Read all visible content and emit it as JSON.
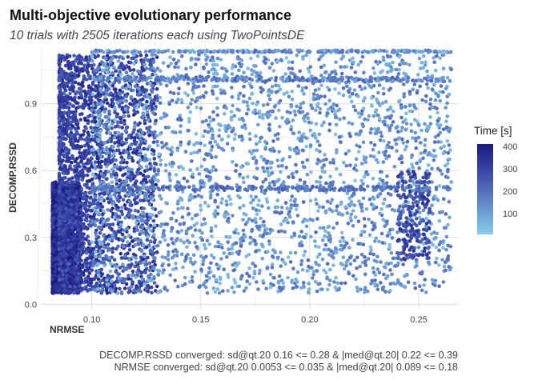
{
  "title": "Multi-objective evolutionary performance",
  "subtitle": "10 trials with 2505 iterations each using TwoPointsDE",
  "captions": [
    "DECOMP.RSSD converged: sd@qt.20 0.16 <= 0.28 & |med@qt.20| 0.22 <= 0.39",
    "NRMSE converged: sd@qt.20 0.0053 <= 0.035 & |med@qt.20| 0.089 <= 0.18"
  ],
  "legend": {
    "title": "Time [s]",
    "labels": [
      "400",
      "300",
      "200",
      "100"
    ]
  },
  "colors": {
    "low": "#87cde9",
    "mid": "#5d7ec4",
    "high": "#1a1a7e",
    "grid": "#dcdcdc"
  },
  "chart_data": {
    "type": "scatter",
    "title": "Multi-objective evolutionary performance",
    "subtitle": "10 trials with 2505 iterations each using TwoPointsDE",
    "xlabel": "NRMSE",
    "ylabel": "DECOMP.RSSD",
    "xlim": [
      0.077,
      0.268
    ],
    "ylim": [
      -0.02,
      1.15
    ],
    "x_ticks": [
      0.1,
      0.15,
      0.2,
      0.25
    ],
    "x_tick_labels": [
      "0.10",
      "0.15",
      "0.20",
      "0.25"
    ],
    "y_ticks": [
      0.0,
      0.3,
      0.6,
      0.9
    ],
    "y_tick_labels": [
      "0.0",
      "0.3",
      "0.6",
      "0.9"
    ],
    "color_scale": {
      "name": "Time [s]",
      "min": 20,
      "max": 420,
      "ticks": [
        100,
        200,
        300,
        400
      ]
    },
    "grid": true,
    "legend_position": "right",
    "n_points_total": 25050,
    "clusters": [
      {
        "x_range": [
          0.082,
          0.095
        ],
        "y_range": [
          0.05,
          0.55
        ],
        "time_mean": 380,
        "share": "dense"
      },
      {
        "x_range": [
          0.085,
          0.13
        ],
        "y_range": [
          0.05,
          1.12
        ],
        "time_mean": 300,
        "share": "dense"
      },
      {
        "x_range": [
          0.1,
          0.265
        ],
        "y_range": [
          0.05,
          1.12
        ],
        "time_mean": 120,
        "share": "sparse"
      },
      {
        "x_range": [
          0.1,
          0.265
        ],
        "y_range": [
          1.0,
          1.02
        ],
        "time_mean": 150,
        "share": "band"
      },
      {
        "x_range": [
          0.1,
          0.265
        ],
        "y_range": [
          1.13,
          1.14
        ],
        "time_mean": 120,
        "share": "band"
      },
      {
        "x_range": [
          0.24,
          0.255
        ],
        "y_range": [
          0.2,
          0.6
        ],
        "time_mean": 280,
        "share": "column"
      }
    ]
  }
}
